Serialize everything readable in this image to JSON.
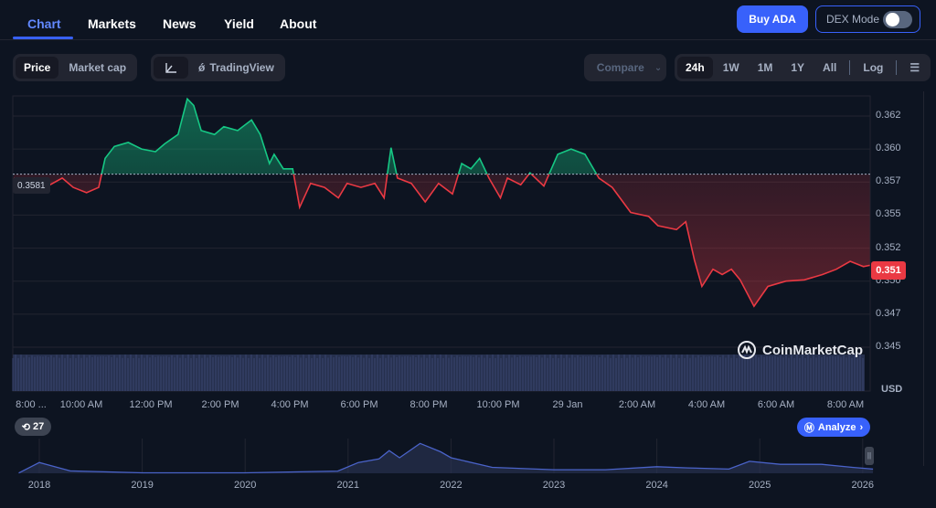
{
  "nav": {
    "tabs": [
      {
        "label": "Chart",
        "active": true
      },
      {
        "label": "Markets"
      },
      {
        "label": "News"
      },
      {
        "label": "Yield"
      },
      {
        "label": "About"
      }
    ],
    "buy_label": "Buy ADA",
    "dex_label": "DEX Mode",
    "dex_on": false
  },
  "toolbar": {
    "price": "Price",
    "market_cap": "Market cap",
    "tradingview": "TradingView",
    "compare": "Compare",
    "ranges": [
      "24h",
      "1W",
      "1M",
      "1Y",
      "All"
    ],
    "active_range": "24h",
    "log": "Log"
  },
  "colors": {
    "up": "#16c784",
    "down": "#ea3943",
    "accent": "#3861fb"
  },
  "brand": "CoinMarketCap",
  "base_price_label": "0.3581",
  "current_price_label": "0.351",
  "currency": "USD",
  "history_count": "27",
  "analyze_label": "Analyze",
  "chart_data": [
    {
      "type": "line",
      "baseline": 0.3581,
      "yticks": [
        "0.362",
        "0.360",
        "0.357",
        "0.355",
        "0.352",
        "0.350",
        "0.347",
        "0.345"
      ],
      "ylim": [
        0.345,
        0.3625
      ],
      "xticks": [
        "8:00 ...",
        "10:00 AM",
        "12:00 PM",
        "2:00 PM",
        "4:00 PM",
        "6:00 PM",
        "8:00 PM",
        "10:00 PM",
        "29 Jan",
        "2:00 AM",
        "4:00 AM",
        "6:00 AM",
        "8:00 AM"
      ],
      "grid": true,
      "series": [
        [
          "08:03",
          0.3578
        ],
        [
          "08:35",
          0.3571
        ],
        [
          "09:06",
          0.3573
        ],
        [
          "09:27",
          0.3578
        ],
        [
          "09:46",
          0.3571
        ],
        [
          "10:09",
          0.3567
        ],
        [
          "10:30",
          0.3571
        ],
        [
          "10:41",
          0.3593
        ],
        [
          "10:57",
          0.3602
        ],
        [
          "11:21",
          0.3605
        ],
        [
          "11:44",
          0.36
        ],
        [
          "12:08",
          0.3598
        ],
        [
          "12:24",
          0.3604
        ],
        [
          "12:47",
          0.3611
        ],
        [
          "13:03",
          0.3638
        ],
        [
          "13:14",
          0.3633
        ],
        [
          "13:27",
          0.3614
        ],
        [
          "13:50",
          0.3611
        ],
        [
          "14:06",
          0.3617
        ],
        [
          "14:30",
          0.3614
        ],
        [
          "14:54",
          0.3622
        ],
        [
          "15:09",
          0.3611
        ],
        [
          "15:25",
          0.3589
        ],
        [
          "15:33",
          0.3596
        ],
        [
          "15:49",
          0.3585
        ],
        [
          "16:05",
          0.3585
        ],
        [
          "16:17",
          0.3556
        ],
        [
          "16:36",
          0.3574
        ],
        [
          "17:00",
          0.3571
        ],
        [
          "17:24",
          0.3563
        ],
        [
          "17:39",
          0.3574
        ],
        [
          "18:03",
          0.3571
        ],
        [
          "18:27",
          0.3574
        ],
        [
          "18:43",
          0.3563
        ],
        [
          "18:55",
          0.3601
        ],
        [
          "19:06",
          0.3578
        ],
        [
          "19:30",
          0.3574
        ],
        [
          "19:54",
          0.356
        ],
        [
          "20:17",
          0.3574
        ],
        [
          "20:41",
          0.3566
        ],
        [
          "20:57",
          0.3589
        ],
        [
          "21:13",
          0.3585
        ],
        [
          "21:28",
          0.3593
        ],
        [
          "21:44",
          0.3578
        ],
        [
          "22:04",
          0.3563
        ],
        [
          "22:16",
          0.3578
        ],
        [
          "22:39",
          0.3573
        ],
        [
          "22:55",
          0.3582
        ],
        [
          "23:19",
          0.3572
        ],
        [
          "23:43",
          0.3596
        ],
        [
          "00:06",
          0.36
        ],
        [
          "00:30",
          0.3596
        ],
        [
          "00:54",
          0.3578
        ],
        [
          "01:17",
          0.3571
        ],
        [
          "01:49",
          0.3552
        ],
        [
          "02:20",
          0.3549
        ],
        [
          "02:36",
          0.3542
        ],
        [
          "03:08",
          0.3539
        ],
        [
          "03:24",
          0.3545
        ],
        [
          "03:39",
          0.3516
        ],
        [
          "03:52",
          0.3496
        ],
        [
          "04:11",
          0.3509
        ],
        [
          "04:27",
          0.3505
        ],
        [
          "04:43",
          0.3509
        ],
        [
          "04:58",
          0.3501
        ],
        [
          "05:22",
          0.3481
        ],
        [
          "05:46",
          0.3496
        ],
        [
          "06:17",
          0.35
        ],
        [
          "06:49",
          0.3501
        ],
        [
          "07:20",
          0.3505
        ],
        [
          "07:44",
          0.3509
        ],
        [
          "08:08",
          0.3515
        ],
        [
          "08:31",
          0.3511
        ],
        [
          "08:42",
          0.3512
        ]
      ]
    },
    {
      "type": "area",
      "xticks": [
        "2018",
        "2019",
        "2020",
        "2021",
        "2022",
        "2023",
        "2024",
        "2025",
        "2026"
      ],
      "series": [
        [
          2017.8,
          0.02
        ],
        [
          2018.0,
          0.9
        ],
        [
          2018.3,
          0.2
        ],
        [
          2018.5,
          0.15
        ],
        [
          2019.0,
          0.04
        ],
        [
          2020.0,
          0.04
        ],
        [
          2020.9,
          0.18
        ],
        [
          2021.1,
          0.9
        ],
        [
          2021.3,
          1.2
        ],
        [
          2021.4,
          1.9
        ],
        [
          2021.5,
          1.3
        ],
        [
          2021.7,
          2.5
        ],
        [
          2021.9,
          1.8
        ],
        [
          2022.0,
          1.3
        ],
        [
          2022.4,
          0.5
        ],
        [
          2023.0,
          0.3
        ],
        [
          2023.5,
          0.3
        ],
        [
          2024.0,
          0.55
        ],
        [
          2024.3,
          0.45
        ],
        [
          2024.7,
          0.35
        ],
        [
          2024.9,
          1.0
        ],
        [
          2025.2,
          0.75
        ],
        [
          2025.6,
          0.75
        ],
        [
          2025.9,
          0.5
        ],
        [
          2026.1,
          0.35
        ]
      ]
    }
  ]
}
